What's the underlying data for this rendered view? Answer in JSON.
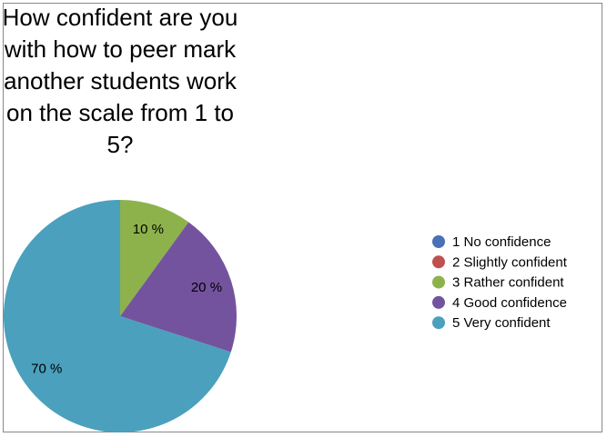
{
  "chart_data": {
    "type": "pie",
    "title": "How confident are you with how to peer mark another students work on the scale from 1 to 5?",
    "categories": [
      "1 No confidence",
      "2 Slightly confident",
      "3 Rather confident",
      "4 Good confidence",
      "5 Very confident"
    ],
    "values": [
      0,
      0,
      10,
      20,
      70
    ],
    "value_labels": [
      null,
      null,
      "10 %",
      "20 %",
      "70 %"
    ],
    "colors": [
      "#4a70b6",
      "#c0504d",
      "#8db24c",
      "#74539e",
      "#4aa0bd"
    ],
    "legend": "right"
  }
}
